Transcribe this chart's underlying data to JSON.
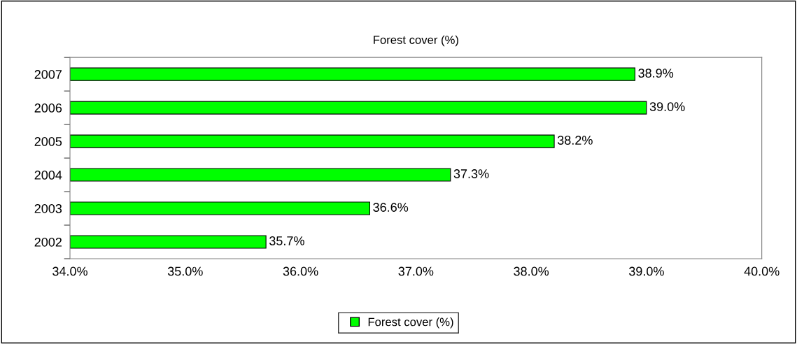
{
  "chart_data": {
    "type": "bar",
    "orientation": "horizontal",
    "title": "Forest cover (%)",
    "categories": [
      "2007",
      "2006",
      "2005",
      "2004",
      "2003",
      "2002"
    ],
    "series": [
      {
        "name": "Forest cover (%)",
        "color": "#00ff00",
        "values": [
          38.9,
          39.0,
          38.2,
          37.3,
          36.6,
          35.7
        ],
        "value_labels": [
          "38.9%",
          "39.0%",
          "38.2%",
          "37.3%",
          "36.6%",
          "35.7%"
        ]
      }
    ],
    "xlim": [
      34,
      40
    ],
    "xticks": [
      {
        "value": 34,
        "label": "34.0%"
      },
      {
        "value": 35,
        "label": "35.0%"
      },
      {
        "value": 36,
        "label": "36.0%"
      },
      {
        "value": 37,
        "label": "37.0%"
      },
      {
        "value": 38,
        "label": "38.0%"
      },
      {
        "value": 39,
        "label": "39.0%"
      },
      {
        "value": 40,
        "label": "40.0%"
      }
    ],
    "grid": false,
    "legend": "bottom"
  }
}
